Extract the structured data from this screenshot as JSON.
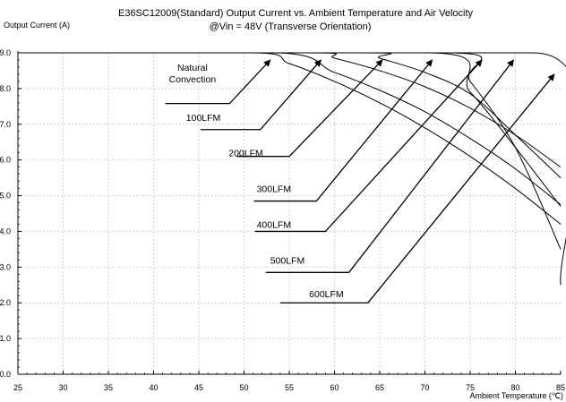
{
  "chart_data": {
    "type": "line",
    "title": "E36SC12009(Standard)  Output Current vs. Ambient Temperature and Air Velocity",
    "subtitle": "@Vin = 48V (Transverse Orientation)",
    "ylabel": "Output Current (A)",
    "xlabel": "Ambient Temperature (℃)",
    "xlim": [
      25,
      85
    ],
    "ylim": [
      0,
      9
    ],
    "x_ticks": [
      "25",
      "30",
      "35",
      "40",
      "45",
      "50",
      "55",
      "60",
      "65",
      "70",
      "75",
      "80",
      "85"
    ],
    "y_ticks": [
      "0.0",
      "1.0",
      "2.0",
      "3.0",
      "4.0",
      "5.0",
      "6.0",
      "7.0",
      "8.0",
      "9.0"
    ],
    "grid": true,
    "series": [
      {
        "name": "Natural Convection",
        "x": [
          25,
          50.5,
          55,
          60,
          65,
          70,
          75,
          80,
          85
        ],
        "y": [
          9.0,
          9.0,
          8.7,
          8.2,
          7.6,
          6.9,
          6.1,
          5.2,
          4.2
        ]
      },
      {
        "name": "100LFM",
        "x": [
          25,
          53,
          60,
          65,
          70,
          75,
          80,
          85
        ],
        "y": [
          9.0,
          9.0,
          8.45,
          7.95,
          7.35,
          6.6,
          5.75,
          4.75
        ]
      },
      {
        "name": "200LFM",
        "x": [
          25,
          57,
          60,
          65,
          70,
          75,
          80,
          85
        ],
        "y": [
          9.0,
          9.0,
          8.85,
          8.5,
          8.05,
          7.45,
          6.7,
          5.8
        ]
      },
      {
        "name": "300LFM",
        "x": [
          25,
          63,
          65,
          70,
          75,
          80,
          85
        ],
        "y": [
          9.0,
          9.0,
          8.85,
          8.45,
          7.85,
          6.7,
          5.5
        ]
      },
      {
        "name": "400LFM",
        "x": [
          25,
          70,
          75,
          80,
          85
        ],
        "y": [
          9.0,
          9.0,
          7.9,
          6.35,
          4.7
        ]
      },
      {
        "name": "500LFM",
        "x": [
          25,
          72,
          75,
          80,
          85
        ],
        "y": [
          9.0,
          9.0,
          8.2,
          6.35,
          3.5
        ]
      },
      {
        "name": "600LFM",
        "x": [
          25,
          82,
          85
        ],
        "y": [
          9.0,
          9.0,
          2.5
        ]
      }
    ],
    "annotations": [
      {
        "lines": [
          "Natural",
          "Convection"
        ],
        "label_x": 44.3,
        "label_y": 8.5,
        "leader": [
          [
            41.3,
            7.58
          ],
          [
            48.4,
            7.58
          ],
          [
            52.9,
            8.8
          ]
        ]
      },
      {
        "lines": [
          "100LFM"
        ],
        "label_x": 45.5,
        "label_y": 7.1,
        "leader": [
          [
            45.2,
            6.85
          ],
          [
            51.8,
            6.85
          ],
          [
            58.5,
            8.8
          ]
        ]
      },
      {
        "lines": [
          "200LFM"
        ],
        "label_x": 50.2,
        "label_y": 6.1,
        "leader": [
          [
            49.2,
            6.1
          ],
          [
            55.0,
            6.1
          ],
          [
            65.3,
            8.8
          ]
        ]
      },
      {
        "lines": [
          "300LFM"
        ],
        "label_x": 53.3,
        "label_y": 5.1,
        "leader": [
          [
            51.1,
            4.85
          ],
          [
            58.0,
            4.85
          ],
          [
            70.8,
            8.8
          ]
        ]
      },
      {
        "lines": [
          "400LFM"
        ],
        "label_x": 53.3,
        "label_y": 4.1,
        "leader": [
          [
            51.2,
            4.0
          ],
          [
            59.0,
            4.0
          ],
          [
            76.3,
            8.8
          ]
        ]
      },
      {
        "lines": [
          "500LFM"
        ],
        "label_x": 54.8,
        "label_y": 3.1,
        "leader": [
          [
            52.4,
            2.85
          ],
          [
            61.6,
            2.85
          ],
          [
            79.8,
            8.8
          ]
        ]
      },
      {
        "lines": [
          "600LFM"
        ],
        "label_x": 59.1,
        "label_y": 2.15,
        "leader": [
          [
            54.0,
            2.0
          ],
          [
            63.7,
            2.0
          ],
          [
            84.3,
            8.4
          ]
        ]
      }
    ]
  }
}
